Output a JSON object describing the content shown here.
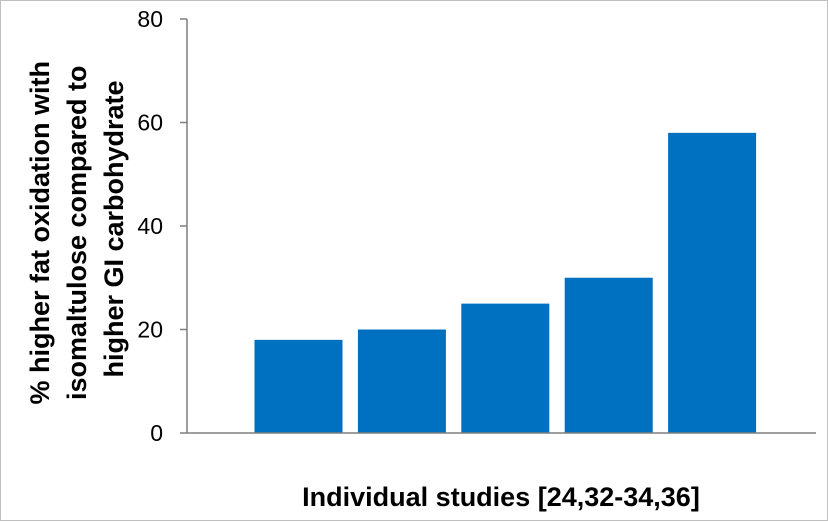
{
  "chart_data": {
    "type": "bar",
    "categories": [
      "",
      "",
      "",
      "",
      ""
    ],
    "values": [
      18,
      20,
      25,
      30,
      58
    ],
    "xlabel": "Individual studies [24,32-34,36]",
    "ylabel_lines": [
      "% higher fat oxidation with",
      "isomaltulose compared to",
      "higher GI carbohydrate"
    ],
    "ylim": [
      0,
      80
    ],
    "yticks": [
      0,
      20,
      40,
      60,
      80
    ],
    "grid": false,
    "legend": "none",
    "bar_color": "#0070c0",
    "axis_color": "#7f7f7f"
  }
}
